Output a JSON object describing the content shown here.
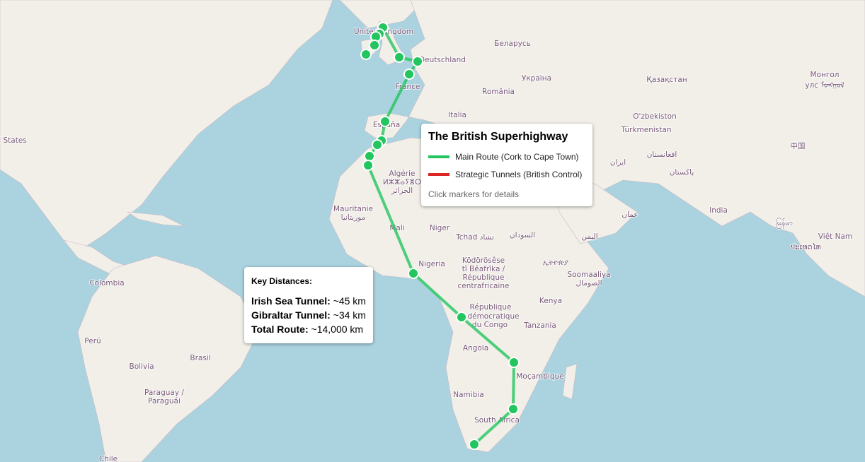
{
  "colors": {
    "ocean": "#aad3df",
    "land": "#f2efe9",
    "route": "#22c55e",
    "tunnel": "#dc2626"
  },
  "legend": {
    "title": "The British Superhighway",
    "items": [
      {
        "label": "Main Route (Cork to Cape Town)",
        "color": "#22c55e"
      },
      {
        "label": "Strategic Tunnels (British Control)",
        "color": "#dc2626"
      }
    ],
    "hint": "Click markers for details"
  },
  "distances": {
    "title": "Key Distances:",
    "rows": [
      {
        "name": "Irish Sea Tunnel:",
        "value": "~45 km"
      },
      {
        "name": "Gibraltar Tunnel:",
        "value": "~34 km"
      },
      {
        "name": "Total Route:",
        "value": "~14,000 km"
      }
    ]
  },
  "map_labels": [
    "United Kingdom",
    "Deutschland",
    "Беларусь",
    "France",
    "Україна",
    "România",
    "Italia",
    "España",
    "Қазақстан",
    "Монгол",
    "улс ᠮᠣᠩᠭᠣᠯ",
    "O'zbekiston",
    "Türkmenistan",
    "افغانستان",
    "ایران",
    "پاکستان",
    "中国",
    "India",
    "Algérie",
    "ⵍⵣⵣⴰⵢⴻⵔ",
    "الجزائر",
    "Mauritanie",
    "موريتانيا",
    "Mali",
    "Niger",
    "Tchad تشاد",
    "السودان",
    "اليمن",
    "عمان",
    "Nigeria",
    "Ködörösêse",
    "tî Bêafrîka /",
    "République",
    "centrafricaine",
    "ኢትዮጵያ",
    "Soomaaliya",
    "الصومال",
    "République",
    "démocratique",
    "du Congo",
    "Kenya",
    "Tanzania",
    "Angola",
    "Moçambique",
    "Namibia",
    "South Africa",
    "ປະເທດໄທ",
    "Việt Nam",
    "မြန်မာ",
    "Colombia",
    "Perú",
    "Brasil",
    "Bolivia",
    "Paraguay /",
    "Paraguái",
    "Chile",
    "l States"
  ],
  "markers_count": 18
}
